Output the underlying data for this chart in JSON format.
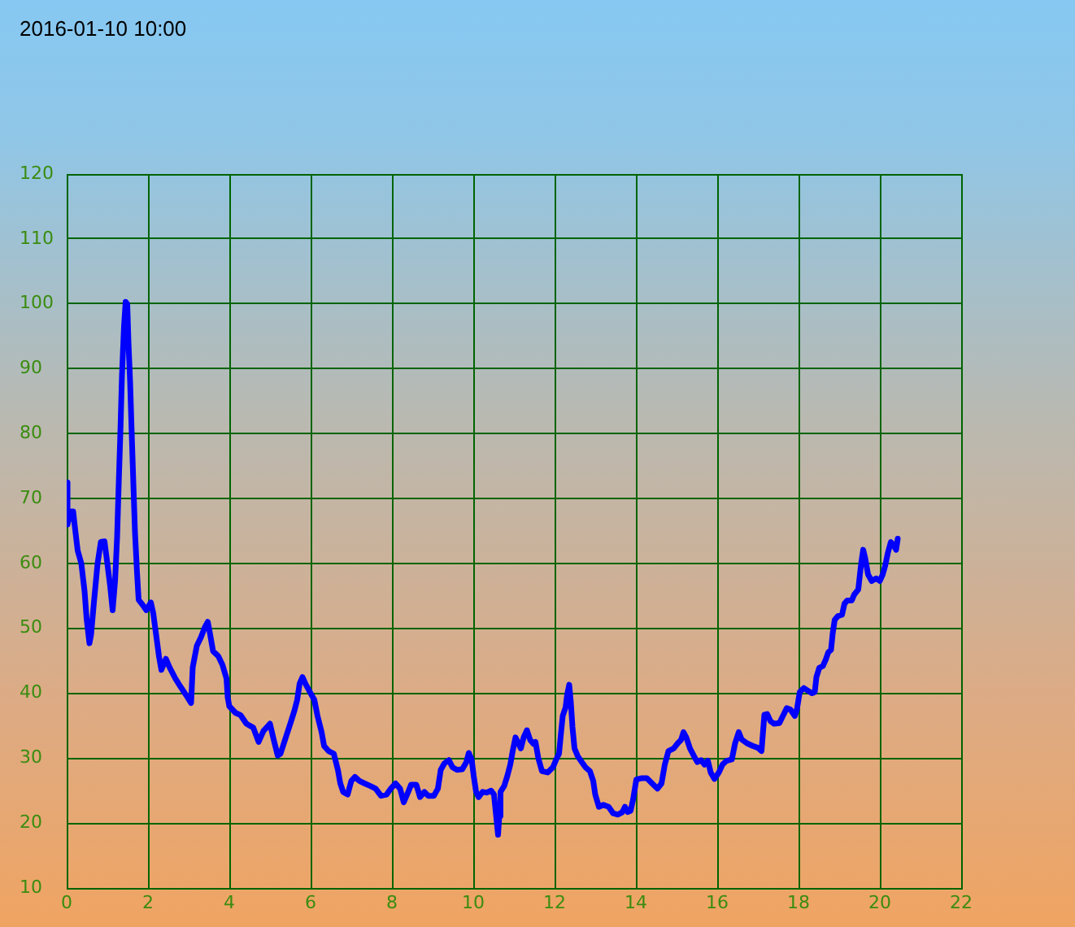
{
  "chart_data": {
    "type": "line",
    "title": "2016-01-10 10:00",
    "x": [
      0,
      0.02,
      0.1,
      0.16,
      0.2,
      0.27,
      0.36,
      0.44,
      0.49,
      0.56,
      0.6,
      0.67,
      0.76,
      0.84,
      0.93,
      1.0,
      1.07,
      1.13,
      1.19,
      1.24,
      1.28,
      1.32,
      1.36,
      1.41,
      1.45,
      1.49,
      1.52,
      1.56,
      1.6,
      1.64,
      1.68,
      1.73,
      1.77,
      1.87,
      1.96,
      2.07,
      2.13,
      2.2,
      2.27,
      2.33,
      2.44,
      2.53,
      2.67,
      2.8,
      2.97,
      3.06,
      3.1,
      3.2,
      3.3,
      3.4,
      3.47,
      3.53,
      3.6,
      3.73,
      3.83,
      3.93,
      3.96,
      4.0,
      4.15,
      4.28,
      4.42,
      4.59,
      4.72,
      4.84,
      5.0,
      5.09,
      5.19,
      5.26,
      5.4,
      5.51,
      5.6,
      5.67,
      5.73,
      5.8,
      5.87,
      6.0,
      6.09,
      6.17,
      6.27,
      6.33,
      6.44,
      6.57,
      6.67,
      6.73,
      6.8,
      6.91,
      7.0,
      7.09,
      7.2,
      7.33,
      7.47,
      7.6,
      7.73,
      7.87,
      7.97,
      8.09,
      8.2,
      8.29,
      8.4,
      8.47,
      8.6,
      8.69,
      8.8,
      8.89,
      9.03,
      9.13,
      9.2,
      9.29,
      9.4,
      9.49,
      9.6,
      9.73,
      9.83,
      9.89,
      9.96,
      10.01,
      10.07,
      10.13,
      10.23,
      10.33,
      10.44,
      10.51,
      10.55,
      10.61,
      10.64,
      10.67,
      10.76,
      10.84,
      10.91,
      10.97,
      11.04,
      11.11,
      11.17,
      11.24,
      11.32,
      11.4,
      11.48,
      11.53,
      11.6,
      11.69,
      11.83,
      11.96,
      12.04,
      12.11,
      12.16,
      12.2,
      12.27,
      12.31,
      12.36,
      12.4,
      12.44,
      12.49,
      12.57,
      12.67,
      12.76,
      12.87,
      12.95,
      13.0,
      13.09,
      13.2,
      13.33,
      13.44,
      13.56,
      13.67,
      13.73,
      13.8,
      13.87,
      13.93,
      14.01,
      14.13,
      14.27,
      14.4,
      14.53,
      14.63,
      14.71,
      14.8,
      14.93,
      15.03,
      15.11,
      15.17,
      15.24,
      15.33,
      15.43,
      15.51,
      15.6,
      15.69,
      15.77,
      15.84,
      15.93,
      16.04,
      16.13,
      16.23,
      16.36,
      16.44,
      16.53,
      16.6,
      16.73,
      16.87,
      17.0,
      17.09,
      17.16,
      17.23,
      17.31,
      17.4,
      17.53,
      17.6,
      17.71,
      17.8,
      17.91,
      17.96,
      18.03,
      18.13,
      18.23,
      18.33,
      18.4,
      18.44,
      18.51,
      18.6,
      18.67,
      18.73,
      18.8,
      18.84,
      18.89,
      18.97,
      19.07,
      19.13,
      19.2,
      19.31,
      19.37,
      19.47,
      19.51,
      19.55,
      19.59,
      19.64,
      19.71,
      19.8,
      19.91,
      20.0,
      20.07,
      20.13,
      20.2,
      20.27,
      20.33,
      20.4,
      20.44
    ],
    "series": [
      {
        "color": "#0000ff",
        "values": [
          72.5,
          66,
          68,
          68,
          65.7,
          62,
          60,
          55.7,
          51.5,
          47.7,
          49,
          54,
          60,
          63.3,
          63.4,
          60,
          56.5,
          52.8,
          57.3,
          64,
          72.3,
          80,
          89,
          96.5,
          100.3,
          100,
          94,
          88,
          80,
          72.3,
          64.8,
          58.6,
          54.4,
          53.6,
          52.8,
          54,
          52.3,
          49,
          45.7,
          43.6,
          45.3,
          44,
          42.3,
          41,
          39.4,
          38.5,
          44,
          47.3,
          48.6,
          50.2,
          51,
          49,
          46.5,
          45.7,
          44.4,
          42.3,
          39.4,
          38,
          37,
          36.6,
          35.3,
          34.7,
          32.5,
          34.2,
          35.3,
          32.9,
          30.4,
          30.7,
          33.4,
          35.5,
          37.3,
          39,
          41.5,
          42.5,
          41.5,
          40,
          39,
          36.5,
          34,
          31.9,
          31.1,
          30.7,
          28.2,
          26.1,
          24.8,
          24.4,
          26.5,
          27.1,
          26.5,
          26.1,
          25.7,
          25.3,
          24.2,
          24.4,
          25.3,
          26.1,
          25.3,
          23.2,
          24.8,
          25.9,
          25.9,
          24,
          24.8,
          24.2,
          24.2,
          25.3,
          28.2,
          29.2,
          29.7,
          28.6,
          28.2,
          28.3,
          29.4,
          30.8,
          29.8,
          27.3,
          24.8,
          24,
          24.8,
          24.7,
          25,
          24.4,
          21.9,
          18.2,
          21.1,
          24.8,
          25.7,
          27.3,
          29,
          31.1,
          33.2,
          32.3,
          31.5,
          33.2,
          34.3,
          32.8,
          32.2,
          32.5,
          30,
          28,
          27.8,
          28.6,
          29.8,
          30.7,
          34,
          36.5,
          37.8,
          39.8,
          41.3,
          38.6,
          34.8,
          31.5,
          30.3,
          29.4,
          28.6,
          28,
          26.5,
          24.4,
          22.5,
          22.8,
          22.5,
          21.5,
          21.3,
          21.7,
          22.5,
          21.7,
          21.9,
          23.6,
          26.7,
          26.9,
          26.9,
          26.1,
          25.3,
          26.1,
          29,
          31.1,
          31.5,
          32.3,
          32.8,
          34,
          33.2,
          31.5,
          30.3,
          29.4,
          29.7,
          29,
          29.6,
          27.8,
          26.8,
          27.8,
          29,
          29.6,
          29.8,
          32.3,
          34,
          32.9,
          32.3,
          31.9,
          31.6,
          31.1,
          36.7,
          36.8,
          35.7,
          35.3,
          35.4,
          36.3,
          37.7,
          37.5,
          36.5,
          37.5,
          40.2,
          40.8,
          40.4,
          40,
          40.2,
          42.5,
          43.9,
          44.2,
          45.2,
          46.3,
          46.7,
          49.2,
          51.3,
          51.9,
          52.1,
          53.8,
          54.3,
          54.3,
          55.2,
          56,
          58.3,
          60.4,
          62.1,
          60.8,
          58.3,
          57.3,
          57.7,
          57.3,
          58.3,
          59.6,
          61.7,
          63.3,
          62.9,
          62.1,
          63.8
        ]
      }
    ],
    "xlim": [
      0,
      22
    ],
    "xticks": [
      0,
      2,
      4,
      6,
      8,
      10,
      12,
      14,
      16,
      18,
      20,
      22
    ],
    "ylim": [
      10,
      120
    ],
    "yticks": [
      10,
      20,
      30,
      40,
      50,
      60,
      70,
      80,
      90,
      100,
      110,
      120
    ],
    "grid": true,
    "legend": false,
    "marker": "none",
    "line_style": "solid"
  }
}
